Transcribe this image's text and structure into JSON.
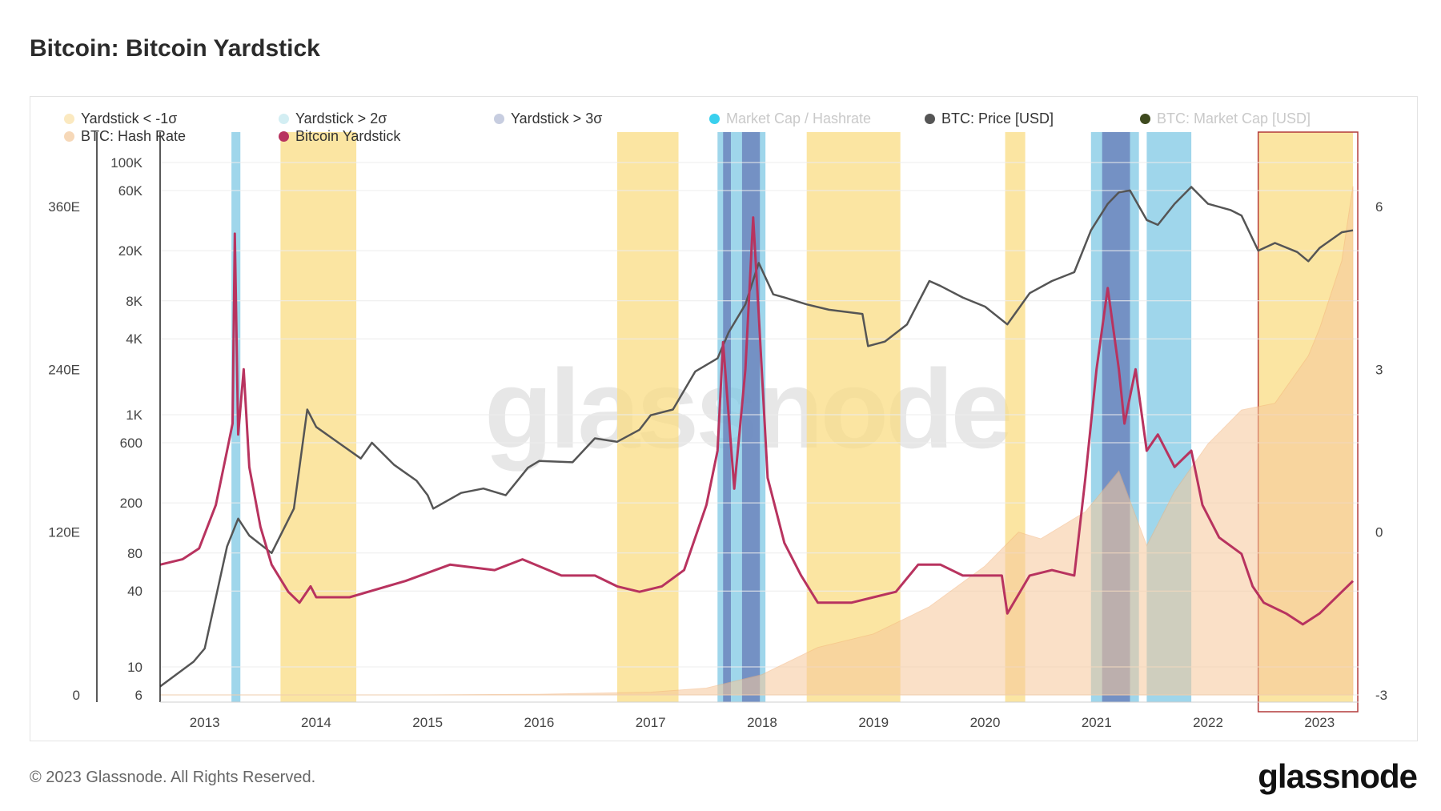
{
  "header": {
    "title": "Bitcoin: Bitcoin Yardstick"
  },
  "legend": [
    {
      "label": "Yardstick < -1σ",
      "color": "#fbe9c0",
      "faded": false
    },
    {
      "label": "Yardstick > 2σ",
      "color": "#d3eef3",
      "faded": false
    },
    {
      "label": "Yardstick > 3σ",
      "color": "#c7cde0",
      "faded": false
    },
    {
      "label": "Market Cap / Hashrate",
      "color": "#39d0ee",
      "faded": true
    },
    {
      "label": "BTC: Price [USD]",
      "color": "#555555",
      "faded": false
    },
    {
      "label": "BTC: Market Cap [USD]",
      "color": "#3e4a1e",
      "faded": true
    },
    {
      "label": "BTC: Hash Rate",
      "color": "#f6d8b8",
      "faded": false
    },
    {
      "label": "Bitcoin Yardstick",
      "color": "#b8335f",
      "faded": false
    }
  ],
  "watermark": "glassnode",
  "footer": {
    "copyright": "© 2023 Glassnode. All Rights Reserved.",
    "brand": "glassnode"
  },
  "chart_data": {
    "type": "line",
    "x_axis": {
      "ticks": [
        "2013",
        "2014",
        "2015",
        "2016",
        "2017",
        "2018",
        "2019",
        "2020",
        "2021",
        "2022",
        "2023"
      ]
    },
    "hashrate_axis": {
      "ticks": [
        "0",
        "120E",
        "240E",
        "360E"
      ]
    },
    "price_axis": {
      "scale": "log",
      "ticks": [
        "6",
        "10",
        "40",
        "80",
        "200",
        "600",
        "1K",
        "4K",
        "8K",
        "20K",
        "60K",
        "100K"
      ]
    },
    "yardstick_axis": {
      "ticks": [
        "-3",
        "0",
        "3",
        "6"
      ]
    },
    "series": [
      {
        "name": "BTC: Price [USD]",
        "color": "#555555",
        "points": [
          [
            2012.6,
            7
          ],
          [
            2012.9,
            11
          ],
          [
            2013.0,
            14
          ],
          [
            2013.2,
            90
          ],
          [
            2013.3,
            150
          ],
          [
            2013.4,
            110
          ],
          [
            2013.6,
            80
          ],
          [
            2013.8,
            180
          ],
          [
            2013.92,
            1100
          ],
          [
            2014.0,
            800
          ],
          [
            2014.2,
            600
          ],
          [
            2014.4,
            450
          ],
          [
            2014.5,
            600
          ],
          [
            2014.7,
            400
          ],
          [
            2014.9,
            300
          ],
          [
            2015.0,
            230
          ],
          [
            2015.05,
            180
          ],
          [
            2015.3,
            240
          ],
          [
            2015.5,
            260
          ],
          [
            2015.7,
            230
          ],
          [
            2015.9,
            380
          ],
          [
            2016.0,
            430
          ],
          [
            2016.3,
            420
          ],
          [
            2016.5,
            650
          ],
          [
            2016.7,
            610
          ],
          [
            2016.9,
            760
          ],
          [
            2017.0,
            990
          ],
          [
            2017.2,
            1100
          ],
          [
            2017.4,
            2200
          ],
          [
            2017.6,
            2800
          ],
          [
            2017.7,
            4500
          ],
          [
            2017.85,
            7500
          ],
          [
            2017.97,
            16000
          ],
          [
            2018.1,
            9000
          ],
          [
            2018.2,
            8500
          ],
          [
            2018.4,
            7500
          ],
          [
            2018.6,
            6800
          ],
          [
            2018.9,
            6300
          ],
          [
            2018.95,
            3500
          ],
          [
            2019.1,
            3800
          ],
          [
            2019.3,
            5200
          ],
          [
            2019.5,
            11500
          ],
          [
            2019.6,
            10500
          ],
          [
            2019.8,
            8500
          ],
          [
            2020.0,
            7200
          ],
          [
            2020.2,
            5200
          ],
          [
            2020.4,
            9200
          ],
          [
            2020.6,
            11500
          ],
          [
            2020.8,
            13500
          ],
          [
            2020.95,
            29000
          ],
          [
            2021.1,
            47000
          ],
          [
            2021.2,
            58000
          ],
          [
            2021.3,
            60000
          ],
          [
            2021.45,
            35000
          ],
          [
            2021.55,
            32000
          ],
          [
            2021.7,
            47000
          ],
          [
            2021.85,
            64000
          ],
          [
            2022.0,
            47000
          ],
          [
            2022.2,
            42000
          ],
          [
            2022.3,
            38000
          ],
          [
            2022.45,
            20000
          ],
          [
            2022.6,
            23000
          ],
          [
            2022.8,
            19500
          ],
          [
            2022.9,
            16500
          ],
          [
            2023.0,
            21000
          ],
          [
            2023.2,
            28000
          ],
          [
            2023.3,
            29000
          ]
        ]
      },
      {
        "name": "Bitcoin Yardstick",
        "color": "#b8335f",
        "points": [
          [
            2012.6,
            -0.6
          ],
          [
            2012.8,
            -0.5
          ],
          [
            2012.95,
            -0.3
          ],
          [
            2013.1,
            0.5
          ],
          [
            2013.2,
            1.5
          ],
          [
            2013.25,
            2.0
          ],
          [
            2013.27,
            5.5
          ],
          [
            2013.3,
            1.8
          ],
          [
            2013.35,
            3.0
          ],
          [
            2013.4,
            1.2
          ],
          [
            2013.5,
            0.1
          ],
          [
            2013.6,
            -0.6
          ],
          [
            2013.75,
            -1.1
          ],
          [
            2013.85,
            -1.3
          ],
          [
            2013.95,
            -1.0
          ],
          [
            2014.0,
            -1.2
          ],
          [
            2014.3,
            -1.2
          ],
          [
            2014.8,
            -0.9
          ],
          [
            2015.2,
            -0.6
          ],
          [
            2015.6,
            -0.7
          ],
          [
            2015.85,
            -0.5
          ],
          [
            2016.2,
            -0.8
          ],
          [
            2016.5,
            -0.8
          ],
          [
            2016.7,
            -1.0
          ],
          [
            2016.9,
            -1.1
          ],
          [
            2017.1,
            -1.0
          ],
          [
            2017.3,
            -0.7
          ],
          [
            2017.5,
            0.5
          ],
          [
            2017.6,
            1.5
          ],
          [
            2017.65,
            3.5
          ],
          [
            2017.75,
            0.8
          ],
          [
            2017.85,
            3.0
          ],
          [
            2017.92,
            5.8
          ],
          [
            2017.97,
            4.0
          ],
          [
            2018.05,
            1.0
          ],
          [
            2018.2,
            -0.2
          ],
          [
            2018.35,
            -0.8
          ],
          [
            2018.5,
            -1.3
          ],
          [
            2018.8,
            -1.3
          ],
          [
            2019.0,
            -1.2
          ],
          [
            2019.2,
            -1.1
          ],
          [
            2019.4,
            -0.6
          ],
          [
            2019.6,
            -0.6
          ],
          [
            2019.8,
            -0.8
          ],
          [
            2020.0,
            -0.8
          ],
          [
            2020.15,
            -0.8
          ],
          [
            2020.2,
            -1.5
          ],
          [
            2020.4,
            -0.8
          ],
          [
            2020.6,
            -0.7
          ],
          [
            2020.8,
            -0.8
          ],
          [
            2020.9,
            1.0
          ],
          [
            2021.0,
            3.0
          ],
          [
            2021.1,
            4.5
          ],
          [
            2021.2,
            3.0
          ],
          [
            2021.25,
            2.0
          ],
          [
            2021.35,
            3.0
          ],
          [
            2021.45,
            1.5
          ],
          [
            2021.55,
            1.8
          ],
          [
            2021.7,
            1.2
          ],
          [
            2021.85,
            1.5
          ],
          [
            2021.95,
            0.5
          ],
          [
            2022.1,
            -0.1
          ],
          [
            2022.3,
            -0.4
          ],
          [
            2022.4,
            -1.0
          ],
          [
            2022.5,
            -1.3
          ],
          [
            2022.7,
            -1.5
          ],
          [
            2022.85,
            -1.7
          ],
          [
            2023.0,
            -1.5
          ],
          [
            2023.2,
            -1.1
          ],
          [
            2023.3,
            -0.9
          ]
        ]
      },
      {
        "name": "BTC: Hash Rate",
        "color": "#f7c89b",
        "points": [
          [
            2012.6,
            0
          ],
          [
            2015.0,
            0
          ],
          [
            2016.0,
            0.5
          ],
          [
            2017.0,
            2
          ],
          [
            2017.5,
            5
          ],
          [
            2018.0,
            15
          ],
          [
            2018.5,
            35
          ],
          [
            2019.0,
            45
          ],
          [
            2019.5,
            65
          ],
          [
            2020.0,
            95
          ],
          [
            2020.3,
            120
          ],
          [
            2020.5,
            115
          ],
          [
            2020.9,
            135
          ],
          [
            2021.2,
            165
          ],
          [
            2021.45,
            110
          ],
          [
            2021.7,
            150
          ],
          [
            2022.0,
            185
          ],
          [
            2022.3,
            210
          ],
          [
            2022.6,
            215
          ],
          [
            2022.9,
            250
          ],
          [
            2023.0,
            270
          ],
          [
            2023.2,
            320
          ],
          [
            2023.3,
            375
          ]
        ]
      }
    ],
    "bands": {
      "yardstick_below_minus_1sigma": [
        [
          2013.68,
          2014.36
        ],
        [
          2016.7,
          2017.25
        ],
        [
          2018.4,
          2019.24
        ],
        [
          2020.18,
          2020.36
        ],
        [
          2022.45,
          2023.3
        ]
      ],
      "yardstick_above_2sigma": [
        [
          2013.24,
          2013.32
        ],
        [
          2017.6,
          2018.03
        ],
        [
          2020.95,
          2021.38
        ],
        [
          2021.45,
          2021.85
        ]
      ],
      "yardstick_above_3sigma": [
        [
          2017.65,
          2017.72
        ],
        [
          2017.82,
          2017.98
        ],
        [
          2021.05,
          2021.3
        ]
      ]
    },
    "highlight_range": [
      2022.45,
      2023.3
    ],
    "grid": true
  }
}
